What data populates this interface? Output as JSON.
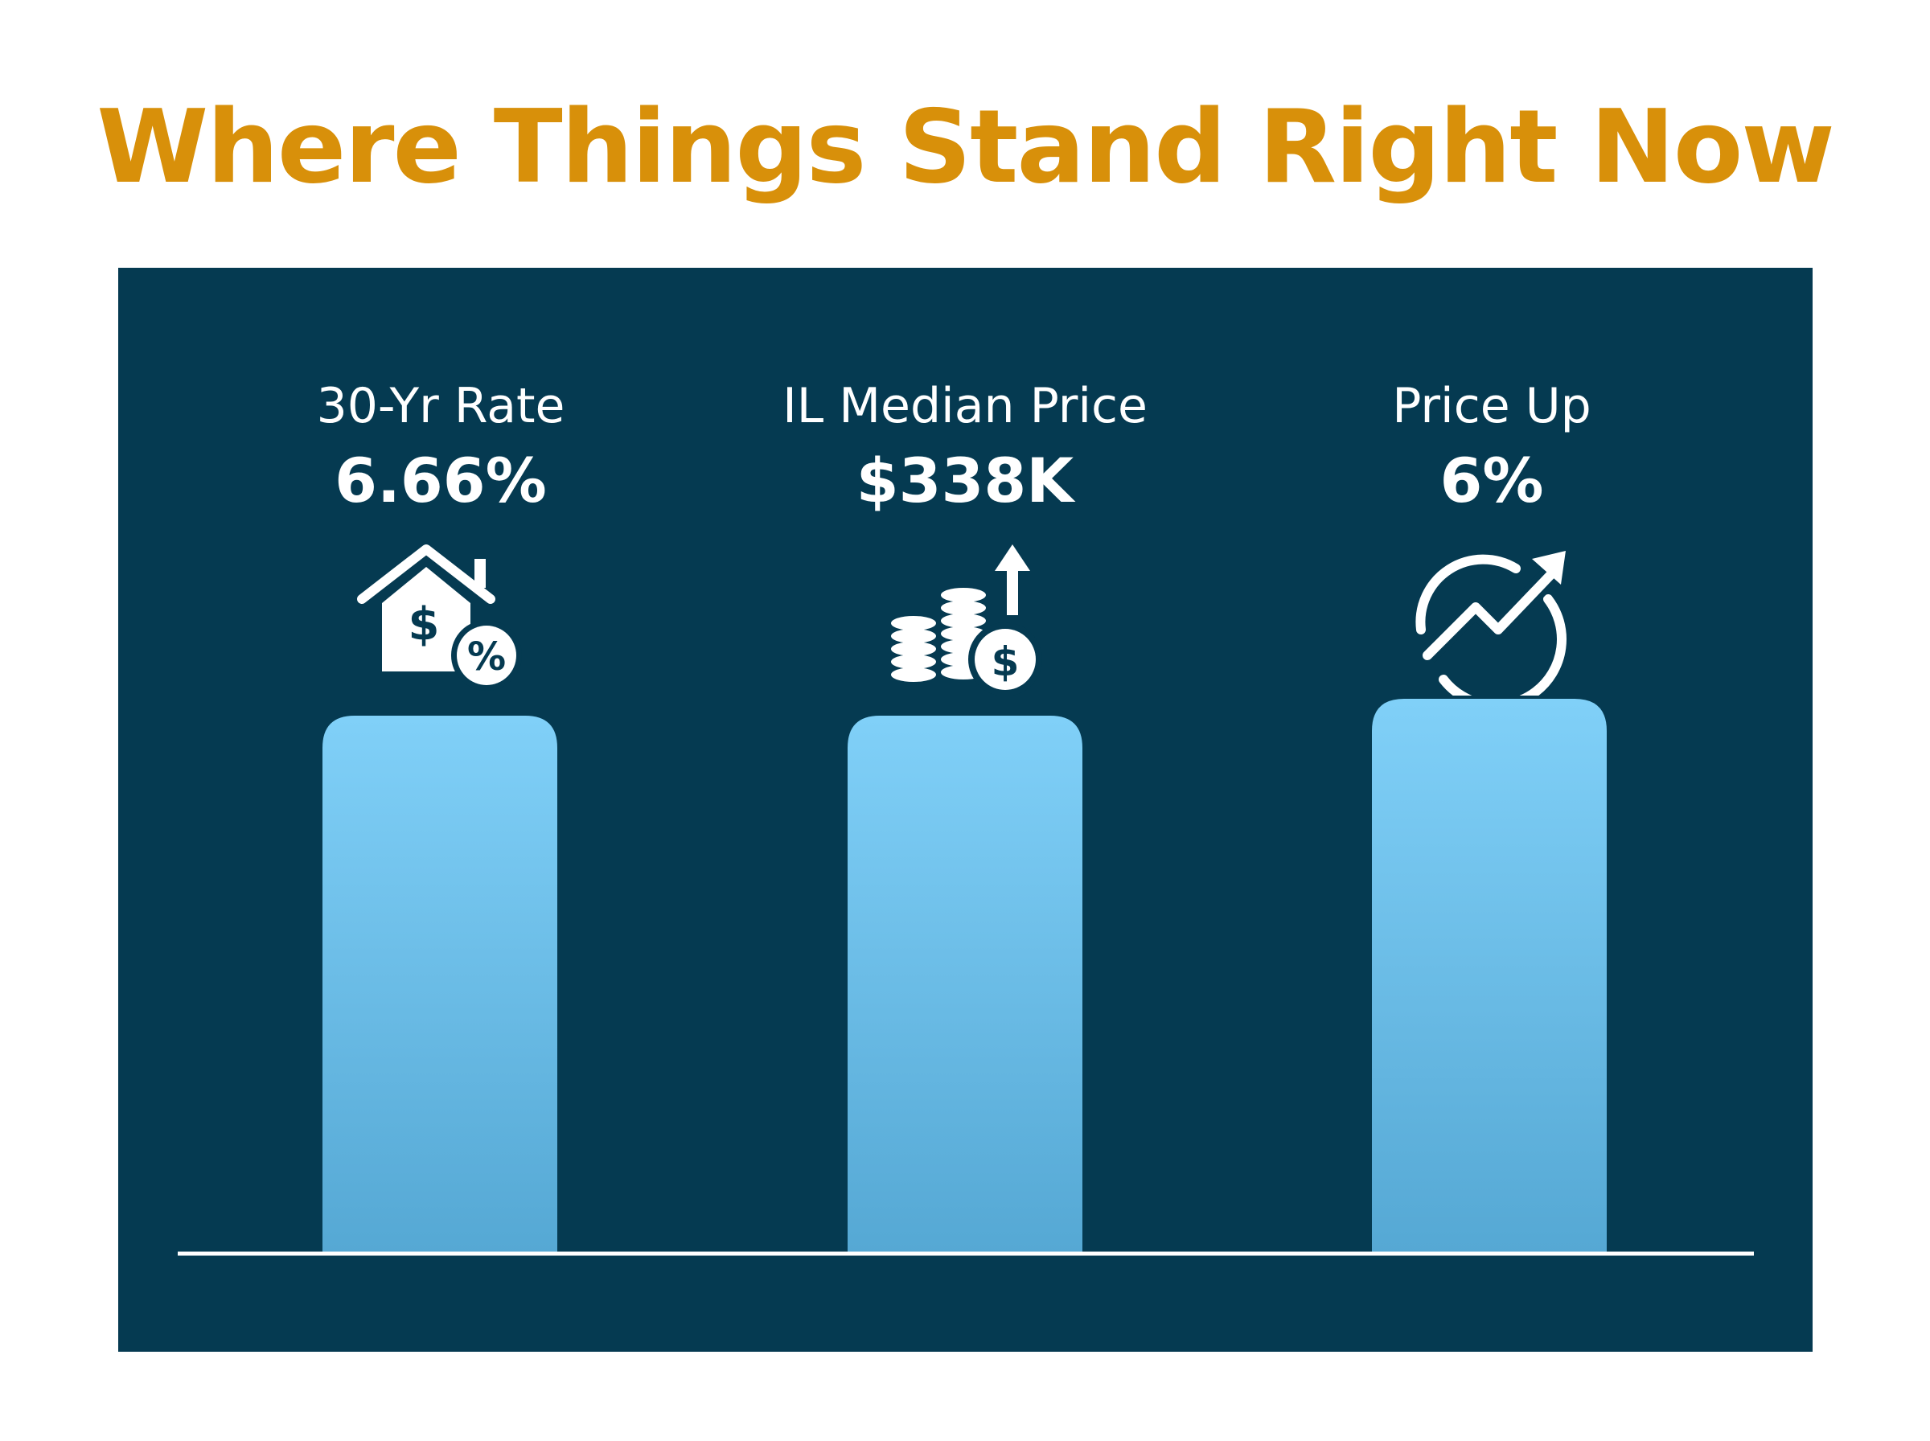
{
  "title": "Where Things Stand Right Now",
  "colors": {
    "title": "#d8900a",
    "panel": "#053a51",
    "bar_top": "#80d0f8",
    "bar_bottom": "#55a8d4",
    "baseline": "#ffffff",
    "text": "#ffffff"
  },
  "chart_data": {
    "type": "bar",
    "categories": [
      "30-Yr Rate",
      "IL Median Price",
      "Price Up"
    ],
    "value_labels": [
      "6.66%",
      "$338K",
      "6%"
    ],
    "icons": [
      "house-dollar-percent-icon",
      "coin-stacks-rising-icon",
      "trend-up-arrow-icon"
    ],
    "relative_heights": [
      0.97,
      0.97,
      1.0
    ],
    "grid": false,
    "legend": "none"
  }
}
